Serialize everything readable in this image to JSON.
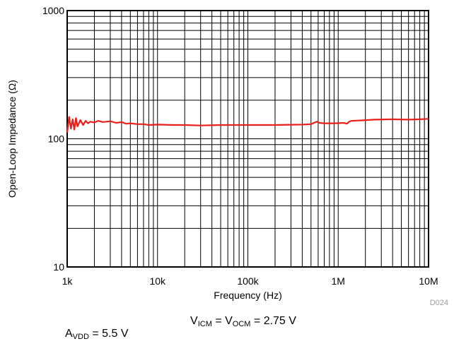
{
  "chart_data": {
    "type": "line",
    "x_scale": "log",
    "y_scale": "log",
    "xlim": [
      1000,
      10000000
    ],
    "ylim": [
      10,
      1000
    ],
    "xlabel": "Frequency (Hz)",
    "ylabel": "Open-Loop Impedance (Ω)",
    "x_ticks": [
      {
        "value": 1000,
        "label": "1k"
      },
      {
        "value": 10000,
        "label": "10k"
      },
      {
        "value": 100000,
        "label": "100k"
      },
      {
        "value": 1000000,
        "label": "1M"
      },
      {
        "value": 10000000,
        "label": "10M"
      }
    ],
    "y_ticks": [
      {
        "value": 10,
        "label": "10"
      },
      {
        "value": 100,
        "label": "100"
      },
      {
        "value": 1000,
        "label": "1000"
      }
    ],
    "grid": true,
    "series": [
      {
        "color": "#e8201c",
        "x": [
          1000,
          1050,
          1100,
          1150,
          1200,
          1250,
          1300,
          1400,
          1500,
          1600,
          1700,
          1800,
          2000,
          2200,
          2500,
          3000,
          3500,
          4000,
          4500,
          5000,
          6000,
          7000,
          8000,
          10000,
          15000,
          20000,
          30000,
          50000,
          100000,
          200000,
          400000,
          500000,
          580000,
          620000,
          700000,
          900000,
          1150000,
          1250000,
          1320000,
          1400000,
          1800000,
          2500000,
          4000000,
          6000000,
          8000000,
          10000000
        ],
        "y": [
          112,
          148,
          120,
          142,
          118,
          145,
          125,
          140,
          128,
          138,
          132,
          136,
          134,
          138,
          135,
          137,
          133,
          135,
          131,
          132,
          130,
          130,
          128,
          129,
          128,
          128,
          127,
          128,
          128,
          128,
          129,
          130,
          136,
          133,
          132,
          132,
          133,
          131,
          136,
          138,
          139,
          141,
          142,
          141,
          142,
          143
        ]
      }
    ]
  },
  "figure_id": "D024",
  "conditions": {
    "avdd": {
      "main": "A",
      "sub": "VDD",
      "rest": " = 5.5 V"
    },
    "vicm": {
      "a_main": "V",
      "a_sub": "ICM",
      "mid": " = V",
      "b_sub": "OCM",
      "rest": " = 2.75 V"
    }
  }
}
